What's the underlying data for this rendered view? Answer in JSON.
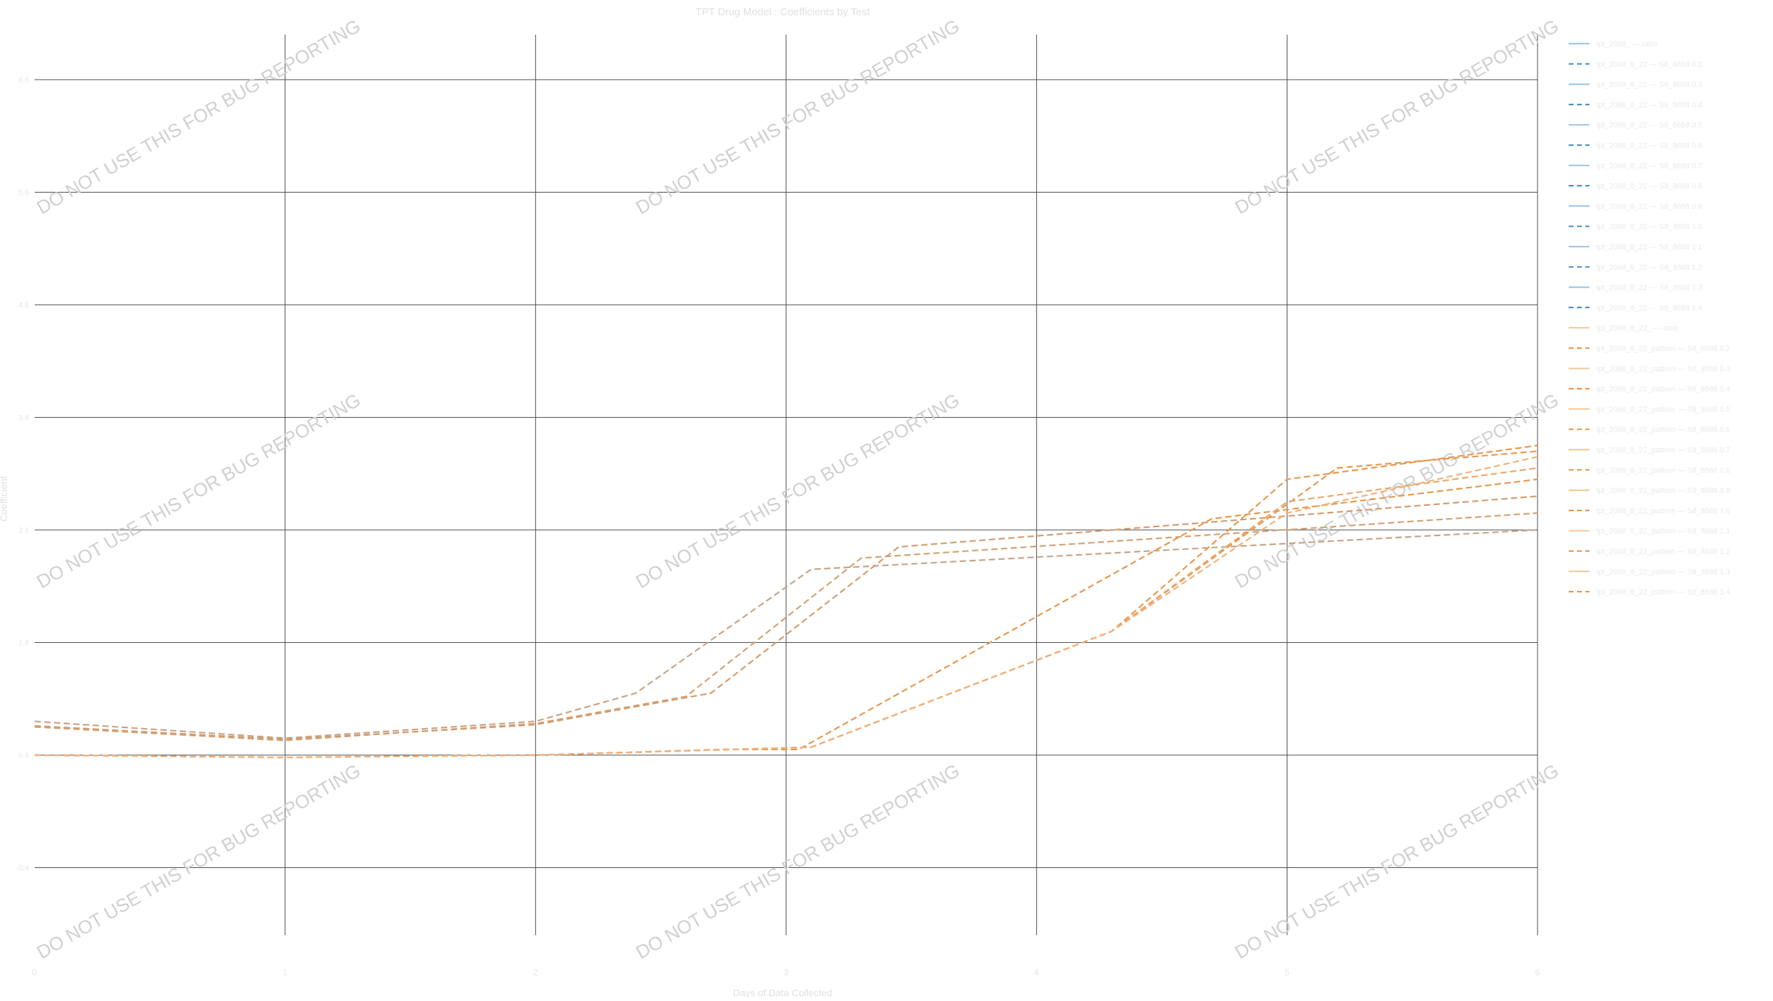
{
  "chart_data": {
    "type": "line",
    "title": "TPT Drug Model : Coefficients by Test",
    "xlabel": "Days of Data Collected",
    "ylabel": "Coefficient",
    "watermark": "DO NOT USE THIS FOR BUG REPORTING",
    "grid": true,
    "legend_position": "right",
    "x": [
      0,
      1,
      2,
      3,
      4,
      5,
      6
    ],
    "x_tick_labels": [
      "0",
      "1",
      "2",
      "3",
      "4",
      "5",
      "6"
    ],
    "ylim": [
      -1.0,
      7.0
    ],
    "y_ticks": [
      -0.4,
      0.6,
      1.6,
      2.6,
      3.6,
      4.6,
      5.6,
      6.6
    ],
    "y_tick_labels": [
      "-0.4",
      "0.6",
      "1.6",
      "2.6",
      "3.6",
      "4.6",
      "5.6",
      "6.6"
    ],
    "colors": {
      "blue_light": "#9ec7e8",
      "blue_dark": "#4a8fc9",
      "orange_light": "#f5c99a",
      "orange_dark": "#e8964c",
      "grid": "#4a4a4a",
      "watermark": "#d0d0d0"
    },
    "legend": [
      {
        "label": "tpt_2068_ — ratio",
        "color": "#9ec7e8",
        "dash": false
      },
      {
        "label": "tpt_2068_8_22 — S8_8688 0.2",
        "color": "#4a8fc9",
        "dash": true
      },
      {
        "label": "tpt_2068_8_22 — S8_8688 0.3",
        "color": "#9ec7e8",
        "dash": false
      },
      {
        "label": "tpt_2068_8_22 — S8_8688 0.4",
        "color": "#4a8fc9",
        "dash": true
      },
      {
        "label": "tpt_2068_8_22 — S8_8688 0.5",
        "color": "#9ec7e8",
        "dash": false
      },
      {
        "label": "tpt_2068_8_22 — S8_8688 0.6",
        "color": "#4a8fc9",
        "dash": true
      },
      {
        "label": "tpt_2068_8_22 — S8_8688 0.7",
        "color": "#9ec7e8",
        "dash": false
      },
      {
        "label": "tpt_2068_8_22 — S8_8688 0.8",
        "color": "#4a8fc9",
        "dash": true
      },
      {
        "label": "tpt_2068_8_22 — S8_8688 0.9",
        "color": "#9ec7e8",
        "dash": false
      },
      {
        "label": "tpt_2068_8_22 — S8_8688 1.0",
        "color": "#4a8fc9",
        "dash": true
      },
      {
        "label": "tpt_2068_8_22 — S8_8688 1.1",
        "color": "#9ec7e8",
        "dash": false
      },
      {
        "label": "tpt_2068_8_22 — S8_8688 1.2",
        "color": "#4a8fc9",
        "dash": true
      },
      {
        "label": "tpt_2068_8_22 — S8_8688 1.3",
        "color": "#9ec7e8",
        "dash": false
      },
      {
        "label": "tpt_2068_8_22 — S8_8688 1.4",
        "color": "#4a8fc9",
        "dash": true
      },
      {
        "label": "tpt_2068_8_22_ — ratio",
        "color": "#f5c99a",
        "dash": false
      },
      {
        "label": "tpt_2068_8_22_pattern — S8_8688 0.2",
        "color": "#e8964c",
        "dash": true
      },
      {
        "label": "tpt_2068_8_22_pattern — S8_8688 0.3",
        "color": "#f5c99a",
        "dash": false
      },
      {
        "label": "tpt_2068_8_22_pattern — S8_8688 0.4",
        "color": "#e8964c",
        "dash": true
      },
      {
        "label": "tpt_2068_8_22_pattern — S8_8688 0.5",
        "color": "#f5c99a",
        "dash": false
      },
      {
        "label": "tpt_2068_8_22_pattern — S8_8688 0.6",
        "color": "#e8964c",
        "dash": true
      },
      {
        "label": "tpt_2068_8_22_pattern — S8_8688 0.7",
        "color": "#f5c99a",
        "dash": false
      },
      {
        "label": "tpt_2068_8_22_pattern — S8_8688 0.8",
        "color": "#e8964c",
        "dash": true
      },
      {
        "label": "tpt_2068_8_22_pattern — S8_8688 0.9",
        "color": "#f5c99a",
        "dash": false
      },
      {
        "label": "tpt_2068_8_22_pattern — S8_8688 1.0",
        "color": "#e8964c",
        "dash": true
      },
      {
        "label": "tpt_2068_8_22_pattern — S8_8688 1.1",
        "color": "#f5c99a",
        "dash": false
      },
      {
        "label": "tpt_2068_8_22_pattern — S8_8688 1.2",
        "color": "#e8964c",
        "dash": true
      },
      {
        "label": "tpt_2068_8_22_pattern — S8_8688 1.3",
        "color": "#f5c99a",
        "dash": false
      },
      {
        "label": "tpt_2068_8_22_pattern — S8_8688 1.4",
        "color": "#e8964c",
        "dash": true
      }
    ],
    "series": [
      {
        "color": "#c8a284",
        "dash": true,
        "x": [
          0,
          1,
          2,
          2.4,
          3.1,
          6
        ],
        "y": [
          0.9,
          0.75,
          0.9,
          1.15,
          2.25,
          2.6
        ]
      },
      {
        "color": "#d4a070",
        "dash": true,
        "x": [
          0,
          1,
          2,
          2.6,
          3.3,
          6
        ],
        "y": [
          0.85,
          0.73,
          0.88,
          1.12,
          2.35,
          2.75
        ]
      },
      {
        "color": "#d49a6c",
        "dash": true,
        "x": [
          0,
          1,
          2,
          2.7,
          3.45,
          6
        ],
        "y": [
          0.86,
          0.74,
          0.87,
          1.15,
          2.45,
          2.9
        ]
      },
      {
        "color": "#e8964c",
        "dash": true,
        "x": [
          0,
          1,
          2,
          2.75,
          3.05,
          4.7,
          6
        ],
        "y": [
          0.6,
          0.58,
          0.6,
          0.65,
          0.65,
          2.7,
          3.05
        ]
      },
      {
        "color": "#e8964c",
        "dash": true,
        "x": [
          0,
          1,
          2,
          3.1,
          4.3,
          5.2,
          6
        ],
        "y": [
          0.6,
          0.58,
          0.6,
          0.67,
          1.7,
          3.15,
          3.3
        ]
      },
      {
        "color": "#e8964c",
        "dash": true,
        "x": [
          0,
          1,
          2,
          3.1,
          4.3,
          5.0,
          6
        ],
        "y": [
          0.6,
          0.58,
          0.6,
          0.67,
          1.7,
          3.05,
          3.35
        ]
      },
      {
        "color": "#eca66a",
        "dash": true,
        "x": [
          0,
          1,
          2,
          3.1,
          4.3,
          5.0,
          6
        ],
        "y": [
          0.6,
          0.58,
          0.6,
          0.67,
          1.7,
          2.85,
          3.15
        ]
      },
      {
        "color": "#f0b07a",
        "dash": true,
        "x": [
          0,
          1,
          2,
          3.1,
          4.3,
          5.0,
          6
        ],
        "y": [
          0.6,
          0.58,
          0.6,
          0.67,
          1.7,
          2.75,
          3.25
        ]
      }
    ]
  }
}
